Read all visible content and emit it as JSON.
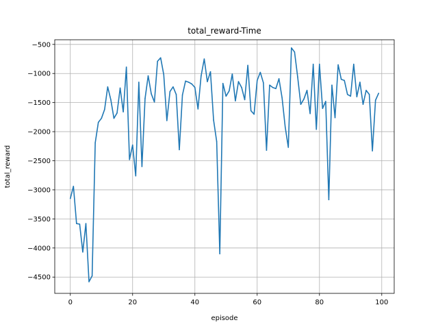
{
  "chart_data": {
    "type": "line",
    "title": "total_reward-Time",
    "xlabel": "episode",
    "ylabel": "total_reward",
    "xlim": [
      -5,
      104
    ],
    "ylim": [
      -4780,
      -420
    ],
    "xticks": [
      0,
      20,
      40,
      60,
      80,
      100
    ],
    "yticks": [
      -4500,
      -4000,
      -3500,
      -3000,
      -2500,
      -2000,
      -1500,
      -1000,
      -500
    ],
    "xtick_labels": [
      "0",
      "20",
      "40",
      "60",
      "80",
      "100"
    ],
    "ytick_labels": [
      "−4500",
      "−4000",
      "−3500",
      "−3000",
      "−2500",
      "−2000",
      "−1500",
      "−1000",
      "−500"
    ],
    "grid": true,
    "line_color": "#1f77b4",
    "series": [
      {
        "x": [
          0,
          1,
          2,
          3,
          4,
          5,
          6,
          7,
          8,
          9,
          10,
          11,
          12,
          13,
          14,
          15,
          16,
          17,
          18,
          19,
          20,
          21,
          22,
          23,
          24,
          25,
          26,
          27,
          28,
          29,
          30,
          31,
          32,
          33,
          34,
          35,
          36,
          37,
          38,
          39,
          40,
          41,
          42,
          43,
          44,
          45,
          46,
          47,
          48,
          49,
          50,
          51,
          52,
          53,
          54,
          55,
          56,
          57,
          58,
          59,
          60,
          61,
          62,
          63,
          64,
          65,
          66,
          67,
          68,
          69,
          70,
          71,
          72,
          73,
          74,
          75,
          76,
          77,
          78,
          79,
          80,
          81,
          82,
          83,
          84,
          85,
          86,
          87,
          88,
          89,
          90,
          91,
          92,
          93,
          94,
          95,
          96,
          97,
          98,
          99
        ],
        "values": [
          -3150,
          -2940,
          -3580,
          -3590,
          -4070,
          -3580,
          -4580,
          -4480,
          -2190,
          -1840,
          -1770,
          -1620,
          -1230,
          -1450,
          -1770,
          -1680,
          -1250,
          -1660,
          -890,
          -2480,
          -2230,
          -2760,
          -1150,
          -2600,
          -1430,
          -1040,
          -1350,
          -1490,
          -790,
          -730,
          -1020,
          -1810,
          -1310,
          -1230,
          -1360,
          -2310,
          -1370,
          -1130,
          -1150,
          -1180,
          -1240,
          -1610,
          -1040,
          -750,
          -1140,
          -970,
          -1800,
          -2170,
          -4100,
          -1170,
          -1390,
          -1300,
          -1010,
          -1470,
          -1140,
          -1240,
          -1450,
          -860,
          -1640,
          -1700,
          -1120,
          -980,
          -1160,
          -2320,
          -1200,
          -1240,
          -1260,
          -1090,
          -1420,
          -1920,
          -2270,
          -560,
          -630,
          -1060,
          -1530,
          -1440,
          -1290,
          -1690,
          -840,
          -1960,
          -840,
          -1600,
          -1480,
          -3170,
          -1200,
          -1760,
          -850,
          -1100,
          -1120,
          -1360,
          -1390,
          -840,
          -1400,
          -1150,
          -1530,
          -1290,
          -1360,
          -2330,
          -1460,
          -1340
        ]
      }
    ]
  }
}
